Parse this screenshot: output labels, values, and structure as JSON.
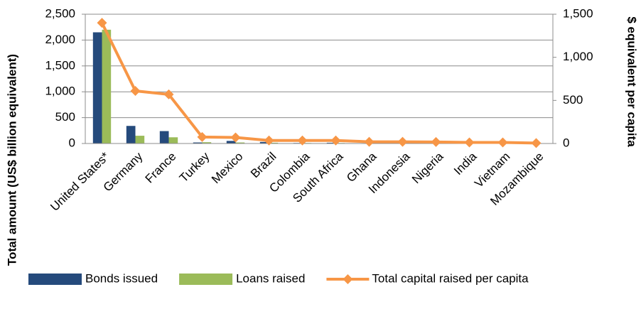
{
  "chart_data": {
    "type": "bar_line",
    "categories": [
      "United States*",
      "Germany",
      "France",
      "Turkey",
      "Mexico",
      "Brazil",
      "Colombia",
      "South Africa",
      "Ghana",
      "Indonesia",
      "Nigeria",
      "India",
      "Vietnam",
      "Mozambique"
    ],
    "series": [
      {
        "name": "Bonds issued",
        "color": "#254a7c",
        "type": "bar",
        "values": [
          2150,
          340,
          240,
          20,
          50,
          30,
          10,
          15,
          2,
          10,
          3,
          10,
          2,
          1
        ]
      },
      {
        "name": "Loans raised",
        "color": "#9bbb59",
        "type": "bar",
        "values": [
          2200,
          150,
          120,
          25,
          20,
          15,
          10,
          10,
          3,
          8,
          3,
          8,
          3,
          1
        ]
      },
      {
        "name": "Total capital raised per capita",
        "color": "#f79646",
        "type": "line",
        "axis": "y2",
        "values": [
          1400,
          610,
          570,
          75,
          70,
          35,
          35,
          35,
          20,
          20,
          18,
          12,
          12,
          5
        ]
      }
    ],
    "ylabel": "Total amount (US$ billion equivalent)",
    "y2label": "$ equivalent per capita",
    "ylim": [
      0,
      2500
    ],
    "yticks": [
      0,
      500,
      {
        "value": 1000,
        "label": "1,000"
      },
      {
        "value": 1500,
        "label": "1,500"
      },
      {
        "value": 2000,
        "label": "2,000"
      },
      {
        "value": 2500,
        "label": "2,500"
      }
    ],
    "y2lim": [
      0,
      1500
    ],
    "y2ticks": [
      0,
      500,
      {
        "value": 1000,
        "label": "1,000"
      },
      {
        "value": 1500,
        "label": "1,500"
      }
    ],
    "grid": true,
    "legend": "bottom"
  }
}
